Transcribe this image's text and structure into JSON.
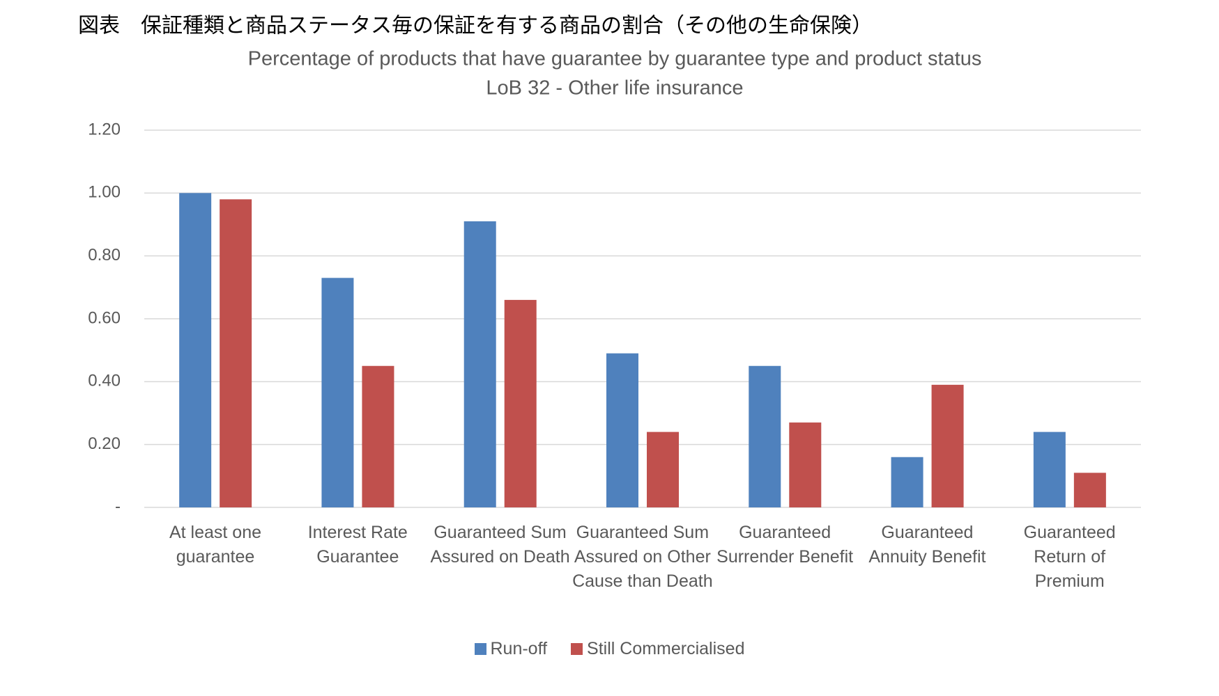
{
  "chart_data": {
    "type": "bar",
    "title": "図表　保証種類と商品ステータス毎の保証を有する商品の割合（その他の生命保険）",
    "subtitle": "Percentage of products that have guarantee by guarantee type and product status",
    "subtitle2": "LoB 32 - Other life insurance",
    "categories": [
      "At least one guarantee",
      "Interest Rate Guarantee",
      "Guaranteed Sum Assured on Death",
      "Guaranteed Sum Assured on Other Cause than Death",
      "Guaranteed Surrender Benefit",
      "Guaranteed Annuity Benefit",
      "Guaranteed Return of Premium"
    ],
    "series": [
      {
        "name": "Run-off",
        "color": "#4f81bd",
        "values": [
          1.0,
          0.73,
          0.91,
          0.49,
          0.45,
          0.16,
          0.24
        ]
      },
      {
        "name": "Still Commercialised",
        "color": "#c0504d",
        "values": [
          0.98,
          0.45,
          0.66,
          0.24,
          0.27,
          0.39,
          0.11
        ]
      }
    ],
    "ylim": [
      0,
      1.2
    ],
    "yticks": [
      {
        "value": 0,
        "label": "-"
      },
      {
        "value": 0.2,
        "label": "0.20"
      },
      {
        "value": 0.4,
        "label": "0.40"
      },
      {
        "value": 0.6,
        "label": "0.60"
      },
      {
        "value": 0.8,
        "label": "0.80"
      },
      {
        "value": 1,
        "label": "1.00"
      },
      {
        "value": 1.2,
        "label": "1.20"
      }
    ],
    "grid": true
  }
}
